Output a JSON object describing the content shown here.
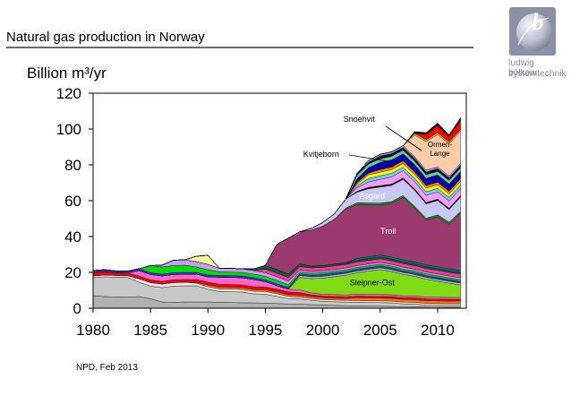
{
  "slide": {
    "title": "Natural gas production in Norway",
    "unit_label": "Billion m³/yr",
    "source_note": "NPD, Feb 2013"
  },
  "logo": {
    "line1": "ludwig bölkow",
    "line2": "systemtechnik",
    "letter": "b"
  },
  "colors": {
    "title_rule": "#6a6a6a",
    "logo_text": "#8a8a9a",
    "troll": "#9b3a6e",
    "sleipner_ost": "#7fdc14",
    "asgard": "#c8c8f6",
    "ormen_lange": "#ffccaa",
    "snoehvit": "#ff0000"
  },
  "chart_data": {
    "type": "area",
    "stacked": true,
    "title": "",
    "xlabel": "",
    "ylabel": "Billion m³/yr",
    "xlim": [
      1980,
      2012.5
    ],
    "ylim": [
      0,
      120
    ],
    "x_ticks": [
      1980,
      1985,
      1990,
      1995,
      2000,
      2005,
      2010
    ],
    "y_ticks": [
      0,
      20,
      40,
      60,
      80,
      100,
      120
    ],
    "x": [
      1980,
      1981,
      1982,
      1983,
      1984,
      1985,
      1986,
      1987,
      1988,
      1989,
      1990,
      1991,
      1992,
      1993,
      1994,
      1995,
      1996,
      1997,
      1998,
      1999,
      2000,
      2001,
      2002,
      2003,
      2004,
      2005,
      2006,
      2007,
      2008,
      2009,
      2010,
      2011,
      2012
    ],
    "series": [
      {
        "color": "#b0b0b0",
        "values": [
          7,
          6.5,
          6.3,
          6.2,
          6.5,
          5.3,
          3.5,
          3.3,
          3.5,
          3.5,
          3.5,
          3.3,
          3.2,
          3,
          3,
          2.8,
          2.6,
          2.4,
          2.2,
          2,
          1.8,
          1.6,
          1.4,
          1.3,
          1.2,
          1.1,
          1,
          0.9,
          0.8,
          0.7,
          0.6,
          0.5,
          0.5
        ]
      },
      {
        "color": "#c8c8c8",
        "values": [
          10,
          11,
          11,
          11,
          8,
          7,
          8,
          9,
          9,
          9,
          7,
          6,
          6,
          6,
          5,
          5,
          4,
          3,
          3,
          2.5,
          2,
          2,
          2,
          2,
          2,
          2,
          2,
          1.5,
          1.5,
          1,
          1,
          1,
          1
        ]
      },
      {
        "color": "#e6e6e6",
        "values": [
          1,
          1,
          1,
          1,
          2,
          2,
          2,
          2,
          2,
          1.5,
          1.5,
          1.5,
          1.5,
          1.5,
          1.5,
          1.5,
          1.5,
          1.2,
          1,
          1,
          1,
          1,
          1,
          1,
          1,
          1,
          1,
          1,
          1,
          1,
          1,
          1,
          1
        ]
      },
      {
        "color": "#ff7700",
        "values": [
          0,
          0,
          0,
          0,
          0,
          0,
          0,
          0,
          0,
          0.5,
          1,
          1,
          1,
          1,
          1,
          1,
          1,
          1,
          1,
          1,
          1,
          1,
          1,
          1.5,
          1.5,
          1.5,
          1.5,
          1.5,
          1.5,
          1.5,
          1.5,
          1.5,
          1.5
        ]
      },
      {
        "color": "#ff0000",
        "values": [
          2,
          2,
          1.5,
          1.5,
          1.5,
          1.5,
          1.5,
          1.5,
          1.5,
          1.5,
          1.5,
          1.5,
          1.5,
          1.5,
          1.5,
          1.5,
          1.5,
          1.5,
          1.5,
          1,
          1,
          1,
          1,
          1,
          1,
          1,
          1,
          1,
          1,
          1,
          1,
          1,
          1
        ]
      },
      {
        "color": "#ff66cc",
        "values": [
          0,
          0,
          0,
          0,
          3,
          3,
          3,
          3,
          3,
          3,
          3,
          4,
          4,
          4,
          4,
          3,
          2,
          1.5,
          1.5,
          1,
          1,
          1,
          1,
          1,
          1,
          1,
          1,
          1,
          1,
          1,
          1,
          1,
          1
        ]
      },
      {
        "color": "#7fdc14",
        "values": [
          0,
          0,
          0,
          0,
          0,
          0,
          0,
          0,
          0,
          0,
          0,
          0,
          0,
          0,
          0,
          0,
          0,
          0,
          7,
          8,
          9,
          10,
          11,
          12,
          13,
          14,
          13,
          12,
          11,
          10,
          9,
          8,
          7
        ]
      },
      {
        "color": "#c0c0c0",
        "values": [
          0,
          0,
          0,
          0,
          0,
          0,
          0,
          0,
          0,
          0,
          0,
          0,
          0,
          0,
          0,
          0,
          0,
          0,
          1,
          1,
          1,
          1,
          1,
          1,
          1,
          1,
          1,
          1,
          1,
          1,
          1,
          1,
          1
        ]
      },
      {
        "color": "#3333ff",
        "values": [
          1,
          1,
          1,
          1,
          1,
          1,
          1,
          1,
          1,
          1,
          1,
          1,
          1,
          1,
          1,
          1,
          1,
          1,
          1,
          1,
          1,
          1,
          1,
          1,
          1,
          1,
          1,
          1,
          1,
          1,
          1,
          1,
          1
        ]
      },
      {
        "color": "#00e000",
        "values": [
          0,
          0,
          0,
          0,
          0,
          4,
          4,
          4,
          4,
          3,
          3,
          2,
          2,
          2,
          2,
          2,
          2,
          1.5,
          1,
          1,
          1,
          1,
          1,
          1,
          1,
          1,
          1,
          1,
          1,
          1,
          1,
          1,
          1
        ]
      },
      {
        "color": "#cc99ff",
        "values": [
          0,
          0,
          0,
          0,
          0,
          0,
          1,
          3,
          3,
          3,
          3,
          2,
          2,
          2,
          2,
          2,
          2,
          2,
          1,
          1,
          1,
          1,
          1,
          1,
          1,
          1,
          1,
          1,
          1,
          1,
          1,
          1,
          1
        ]
      },
      {
        "color": "#ff3399",
        "values": [
          0,
          0,
          0,
          0,
          0,
          0,
          0,
          0,
          0,
          0,
          0,
          0,
          0,
          0,
          0,
          2,
          2,
          2,
          2,
          2,
          2,
          2,
          2,
          2,
          2,
          2,
          2,
          2,
          2,
          2,
          2,
          2,
          2
        ]
      },
      {
        "color": "#006633",
        "values": [
          0,
          0,
          0,
          0,
          0,
          0,
          0,
          0,
          0,
          0,
          0,
          0,
          0,
          0,
          1,
          2,
          2,
          2,
          1.5,
          1,
          1,
          1,
          1,
          1,
          1,
          1,
          1,
          1,
          1,
          1,
          1,
          1,
          1
        ]
      },
      {
        "color": "#008080",
        "values": [
          0,
          0,
          0,
          0,
          0,
          0,
          0,
          0,
          0,
          0,
          0,
          0,
          0,
          0,
          0,
          0,
          0,
          0,
          0,
          0,
          0,
          0,
          0,
          1,
          1,
          1,
          1,
          1,
          1,
          1,
          1,
          1,
          1
        ]
      },
      {
        "name": "Troll",
        "color": "#9b3a6e",
        "values": [
          0,
          0,
          0,
          0,
          0,
          0,
          0,
          0,
          0,
          0,
          0,
          0,
          0,
          0,
          0,
          0,
          14,
          20,
          18,
          20,
          22,
          25,
          30,
          30,
          29,
          28,
          30,
          35,
          30,
          25,
          28,
          25,
          32
        ]
      },
      {
        "color": "#00aa00",
        "values": [
          0,
          0,
          0,
          0,
          0,
          0,
          0,
          0,
          0,
          0,
          0,
          0,
          0,
          0,
          0,
          0,
          0,
          0,
          0,
          0,
          0,
          0,
          0.5,
          1,
          1,
          1,
          1,
          1,
          1,
          1,
          1,
          1,
          1
        ]
      },
      {
        "color": "#ffff99",
        "values": [
          0,
          0,
          0,
          0,
          0,
          0,
          0,
          0,
          0,
          3,
          5,
          0,
          0,
          0,
          0,
          0,
          0,
          0,
          0,
          0,
          0,
          0,
          0,
          0,
          0,
          0,
          0,
          0,
          0,
          0,
          0,
          0,
          0
        ]
      },
      {
        "name": "Asgard",
        "color": "#c8c8f6",
        "values": [
          0,
          0,
          0,
          0,
          0,
          0,
          0,
          0,
          0,
          0,
          0,
          0,
          0,
          0,
          0,
          0,
          0,
          0,
          0,
          1,
          2,
          3,
          5,
          6,
          8,
          9,
          9,
          9,
          9,
          8,
          8,
          7,
          8
        ]
      },
      {
        "color": "#000000",
        "values": [
          0,
          0,
          0,
          0,
          0,
          0,
          0,
          0,
          0,
          0,
          0,
          0,
          0,
          0,
          0,
          0,
          0,
          0,
          0,
          0,
          0,
          0,
          0,
          0.5,
          0.8,
          0.8,
          0.8,
          0.8,
          0.8,
          0.8,
          0.8,
          0.8,
          0.8
        ]
      },
      {
        "color": "#ff99ff",
        "values": [
          0,
          0,
          0,
          0,
          0,
          0,
          0,
          0,
          0,
          0,
          0,
          0,
          0,
          0,
          0,
          0,
          0,
          0,
          0,
          0,
          0,
          0,
          0,
          2,
          3,
          3.5,
          4,
          4,
          4,
          4,
          4,
          4,
          4
        ]
      },
      {
        "color": "#66ccff",
        "values": [
          0,
          0,
          0,
          0,
          0,
          0,
          0,
          0,
          0,
          0,
          0,
          0,
          0,
          0,
          0,
          0,
          0,
          0,
          0,
          0,
          0,
          0,
          0,
          1,
          2,
          2,
          2,
          2,
          2,
          2,
          2,
          2,
          2
        ]
      },
      {
        "color": "#ffff00",
        "values": [
          0,
          0,
          0,
          0,
          0,
          0,
          0,
          0,
          0,
          0,
          0,
          0,
          0,
          0,
          0,
          0,
          0,
          0,
          0,
          0,
          0,
          0,
          0,
          1,
          2,
          2,
          2,
          2,
          2,
          2,
          2,
          2,
          2
        ]
      },
      {
        "color": "#ff8000",
        "values": [
          0,
          0,
          0,
          0,
          0,
          0,
          0,
          0,
          0,
          0,
          0,
          0,
          0,
          0,
          0,
          0,
          0,
          0,
          0,
          0,
          0,
          0,
          0,
          1,
          1,
          1.5,
          1.5,
          1.5,
          1.5,
          1.5,
          1.5,
          1.5,
          1.5
        ]
      },
      {
        "color": "#0000aa",
        "values": [
          0,
          0,
          0,
          0,
          0,
          0,
          0,
          0,
          0,
          0,
          0,
          0,
          0,
          0,
          0,
          0,
          0,
          0,
          0,
          0,
          0,
          0,
          0,
          2,
          3,
          4,
          4,
          4,
          4,
          4,
          4,
          4,
          4
        ]
      },
      {
        "color": "#66cc99",
        "values": [
          0,
          0,
          0,
          0,
          0,
          0,
          0,
          0,
          0,
          0,
          0,
          0,
          0,
          0,
          0,
          0,
          0,
          0,
          0,
          0,
          0,
          0,
          0,
          2,
          2,
          2,
          2,
          2,
          2,
          2,
          2,
          2,
          2
        ]
      },
      {
        "color": "#111111",
        "values": [
          0,
          0,
          0,
          0,
          0,
          0,
          0,
          0,
          0,
          0,
          0,
          0,
          0,
          0,
          0,
          0,
          0,
          0,
          0,
          0,
          0,
          0,
          0,
          1,
          1,
          1.5,
          1.5,
          1.5,
          1.5,
          1.5,
          1.5,
          1.5,
          1.5
        ]
      },
      {
        "color": "#9999ff",
        "values": [
          0,
          0,
          0,
          0,
          0,
          0,
          0,
          0,
          0,
          0,
          0,
          0,
          0,
          0,
          0,
          0,
          0,
          0,
          0,
          0,
          0,
          0,
          0,
          0,
          1,
          1,
          1,
          1,
          1,
          1,
          1,
          1,
          1
        ]
      },
      {
        "name": "Ormen-Lange",
        "color": "#ffccaa",
        "values": [
          0,
          0,
          0,
          0,
          0,
          0,
          0,
          0,
          0,
          0,
          0,
          0,
          0,
          0,
          0,
          0,
          0,
          0,
          0,
          0,
          0,
          0,
          0,
          0,
          0,
          0,
          0,
          0,
          12,
          16,
          18,
          18,
          18
        ]
      },
      {
        "color": "#cccc00",
        "values": [
          0,
          0,
          0,
          0,
          0,
          0,
          0,
          0,
          0,
          0,
          0,
          0,
          0,
          0,
          0,
          0,
          0,
          0,
          0,
          0,
          0,
          0,
          0,
          0,
          0,
          0,
          0,
          0,
          1,
          1,
          1,
          1,
          1
        ]
      },
      {
        "name": "Snoehvit",
        "color": "#ff0000",
        "values": [
          0,
          0,
          0,
          0,
          0,
          0,
          0,
          0,
          0,
          0,
          0,
          0,
          0,
          0,
          0,
          0,
          0,
          0,
          0,
          0,
          0,
          0,
          0,
          0,
          0,
          0,
          0,
          0,
          0,
          3,
          4,
          3,
          5
        ]
      },
      {
        "color": "#000000",
        "values": [
          0,
          0,
          0,
          0,
          0,
          0,
          0,
          0,
          0,
          0,
          0,
          0,
          0,
          0,
          0,
          0,
          0,
          0,
          0,
          0,
          0,
          0,
          0,
          0,
          0,
          0,
          0,
          0,
          1,
          1,
          1.5,
          1,
          1.5
        ]
      }
    ],
    "annotations": [
      {
        "text": "Snoehvit",
        "points_to_year": 2008
      },
      {
        "text": "Kvitjeborn",
        "points_to_year": 2006
      },
      {
        "text": "Ormen-\nLange",
        "series": "Ormen-Lange"
      },
      {
        "text": "Asgard",
        "series": "Asgard"
      },
      {
        "text": "Troll",
        "series": "Troll"
      },
      {
        "text": "Sleipner-Ost",
        "series": "Sleipner-Ost"
      }
    ]
  }
}
